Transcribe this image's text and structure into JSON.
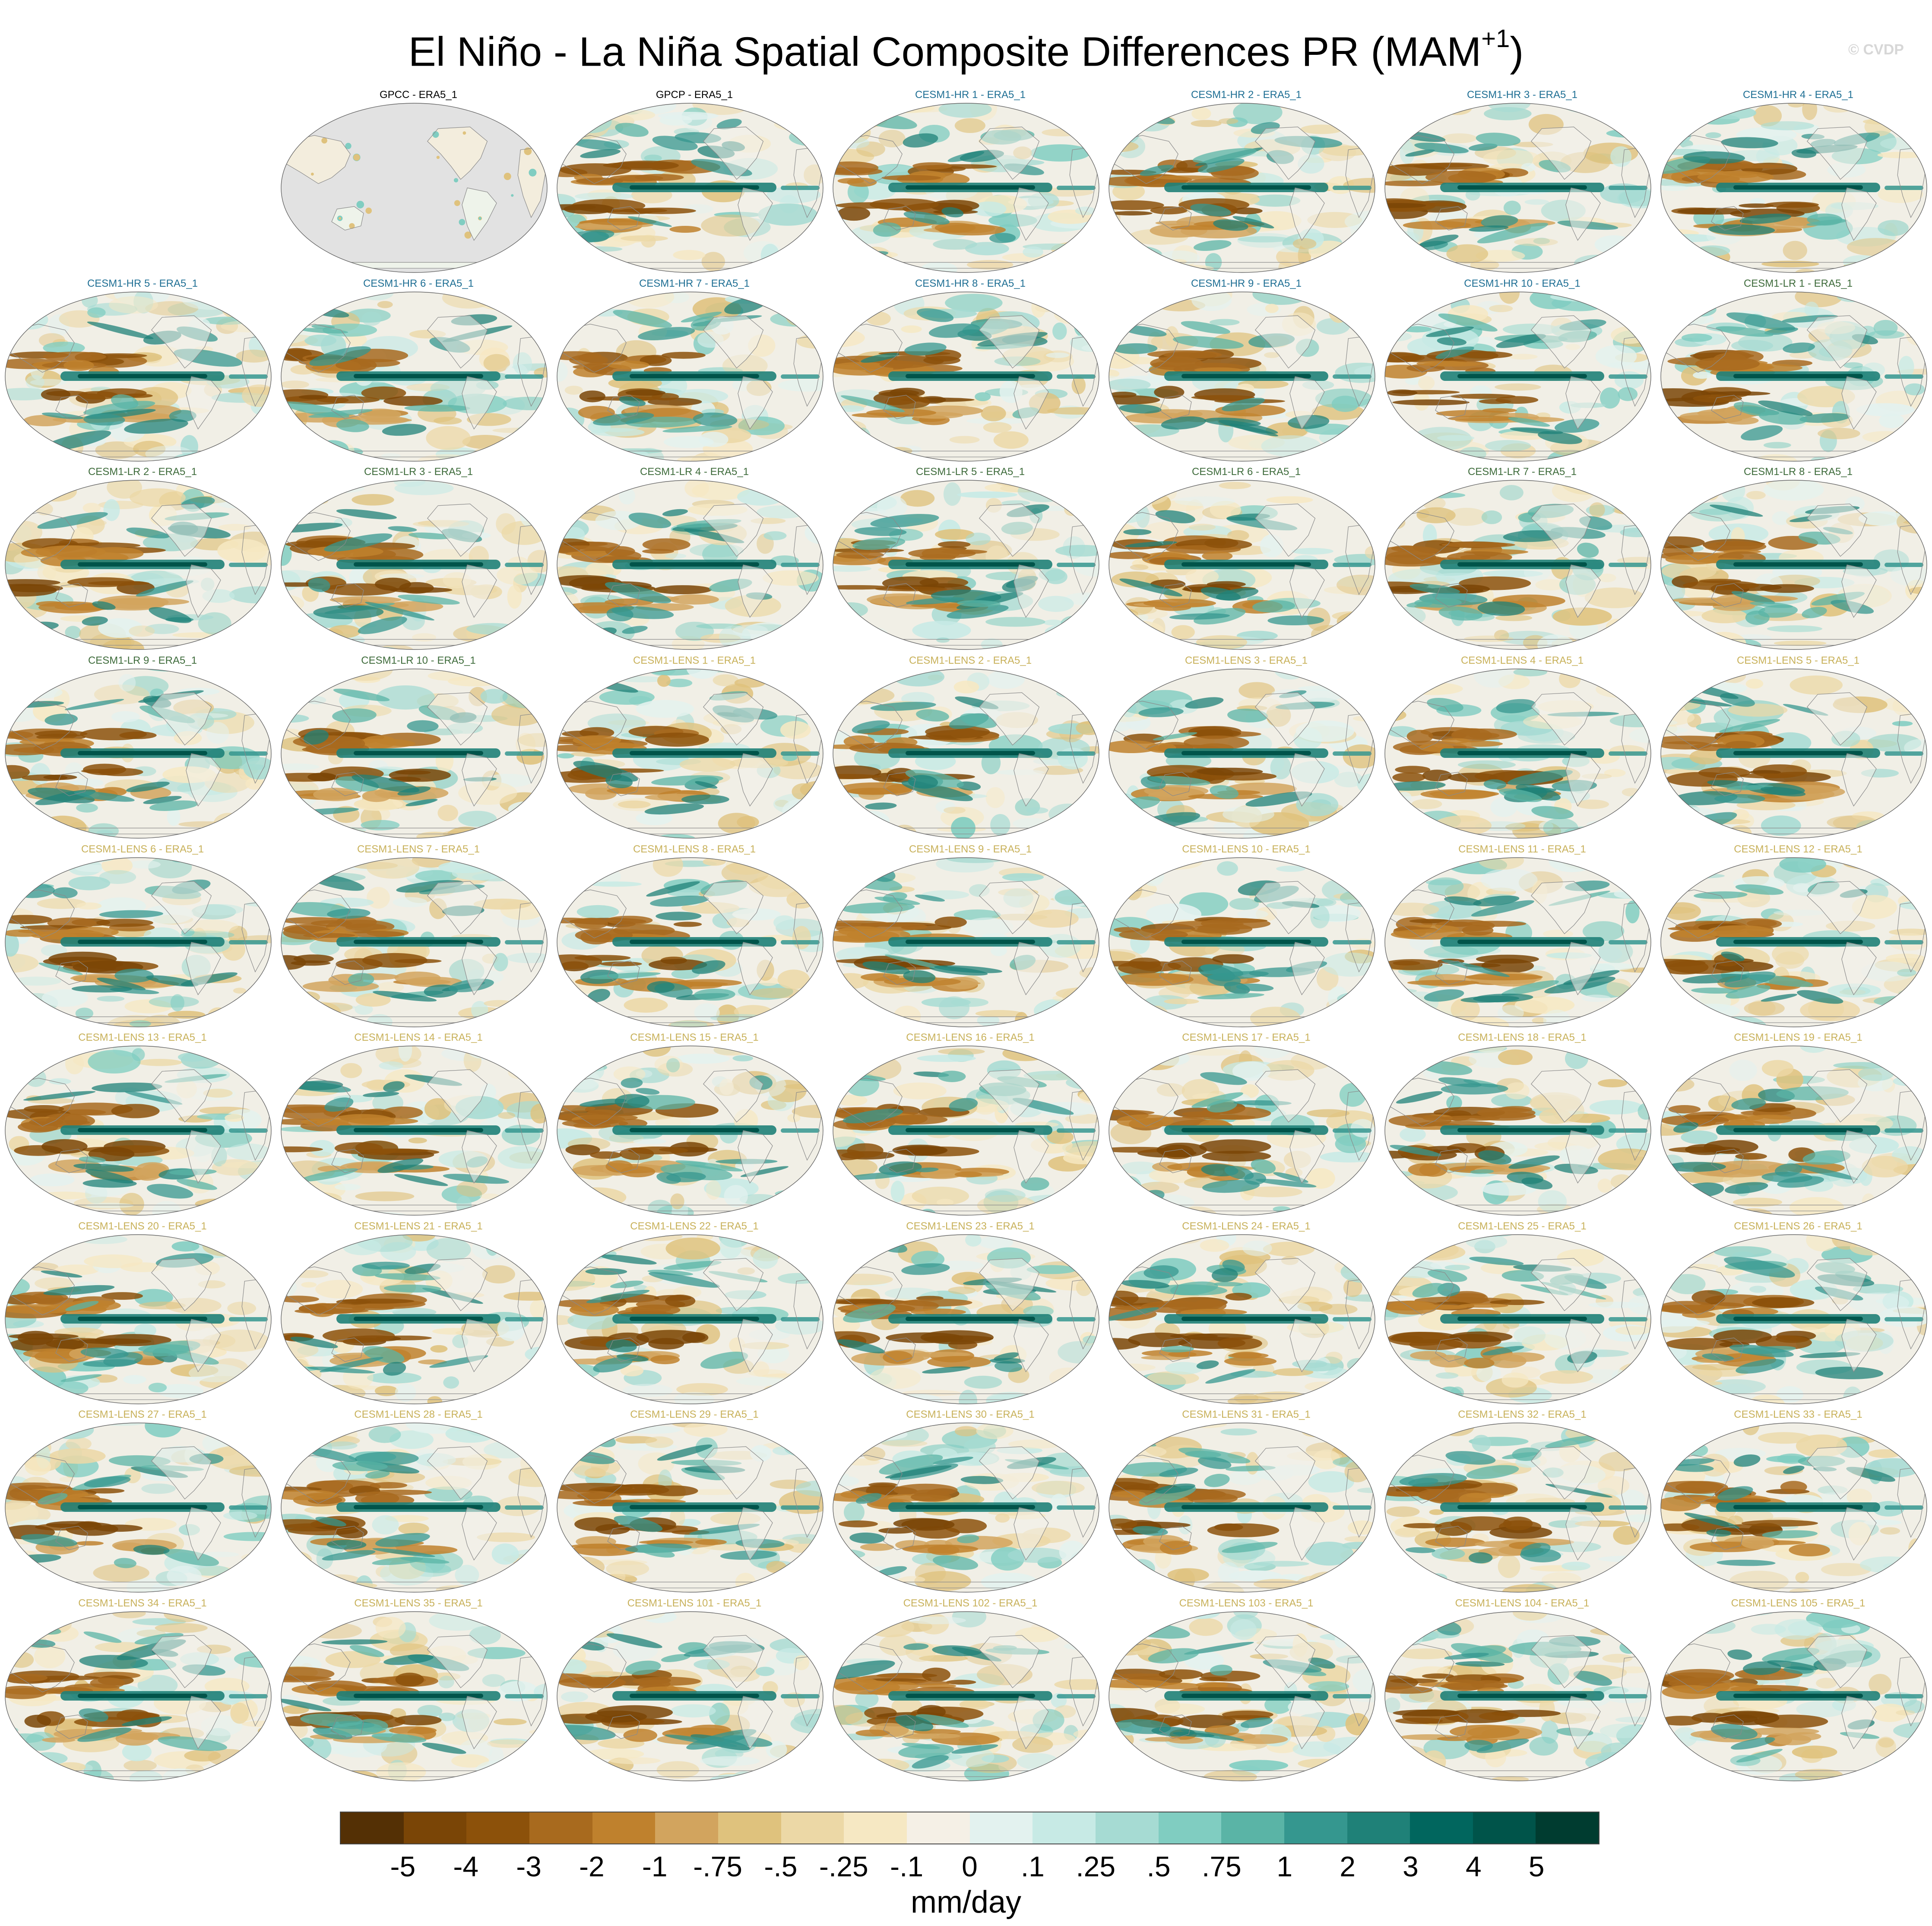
{
  "title": {
    "main": "El Niño - La Niña Spatial Composite Differences PR (MAM",
    "sup": "+1",
    "close": ")"
  },
  "watermark": "© CVDP",
  "colorbar": {
    "units": "mm/day",
    "ticks": [
      "-5",
      "-4",
      "-3",
      "-2",
      "-1",
      "-.75",
      "-.5",
      "-.25",
      "-.1",
      "0",
      ".1",
      ".25",
      ".5",
      ".75",
      "1",
      "2",
      "3",
      "4",
      "5"
    ],
    "colors": [
      "#543005",
      "#7a4506",
      "#8c510a",
      "#a86a1e",
      "#bf812d",
      "#d2a45e",
      "#dfc27d",
      "#ecd8a6",
      "#f6e8c3",
      "#f5f0e6",
      "#e3f2ef",
      "#c7eae5",
      "#a6dbd3",
      "#80cdc1",
      "#5ab4a6",
      "#35978f",
      "#1f8178",
      "#01665e",
      "#00544a",
      "#003c30"
    ]
  },
  "panel_groups": {
    "obs": {
      "color": "#000000"
    },
    "hr": {
      "color": "#1f6f94"
    },
    "lr": {
      "color": "#3e6b3b"
    },
    "lens": {
      "color": "#c8b15a"
    }
  },
  "panels": [
    {
      "row": 0,
      "col": 1,
      "label": "GPCC - ERA5_1",
      "group": "obs",
      "masked": true
    },
    {
      "row": 0,
      "col": 2,
      "label": "GPCP - ERA5_1",
      "group": "obs"
    },
    {
      "row": 0,
      "col": 3,
      "label": "CESM1-HR 1 - ERA5_1",
      "group": "hr"
    },
    {
      "row": 0,
      "col": 4,
      "label": "CESM1-HR 2 - ERA5_1",
      "group": "hr"
    },
    {
      "row": 0,
      "col": 5,
      "label": "CESM1-HR 3 - ERA5_1",
      "group": "hr"
    },
    {
      "row": 0,
      "col": 6,
      "label": "CESM1-HR 4 - ERA5_1",
      "group": "hr"
    },
    {
      "row": 1,
      "col": 0,
      "label": "CESM1-HR 5 - ERA5_1",
      "group": "hr"
    },
    {
      "row": 1,
      "col": 1,
      "label": "CESM1-HR 6 - ERA5_1",
      "group": "hr"
    },
    {
      "row": 1,
      "col": 2,
      "label": "CESM1-HR 7 - ERA5_1",
      "group": "hr"
    },
    {
      "row": 1,
      "col": 3,
      "label": "CESM1-HR 8 - ERA5_1",
      "group": "hr"
    },
    {
      "row": 1,
      "col": 4,
      "label": "CESM1-HR 9 - ERA5_1",
      "group": "hr"
    },
    {
      "row": 1,
      "col": 5,
      "label": "CESM1-HR 10 - ERA5_1",
      "group": "hr"
    },
    {
      "row": 1,
      "col": 6,
      "label": "CESM1-LR 1 - ERA5_1",
      "group": "lr"
    },
    {
      "row": 2,
      "col": 0,
      "label": "CESM1-LR 2 - ERA5_1",
      "group": "lr"
    },
    {
      "row": 2,
      "col": 1,
      "label": "CESM1-LR 3 - ERA5_1",
      "group": "lr"
    },
    {
      "row": 2,
      "col": 2,
      "label": "CESM1-LR 4 - ERA5_1",
      "group": "lr"
    },
    {
      "row": 2,
      "col": 3,
      "label": "CESM1-LR 5 - ERA5_1",
      "group": "lr"
    },
    {
      "row": 2,
      "col": 4,
      "label": "CESM1-LR 6 - ERA5_1",
      "group": "lr"
    },
    {
      "row": 2,
      "col": 5,
      "label": "CESM1-LR 7 - ERA5_1",
      "group": "lr"
    },
    {
      "row": 2,
      "col": 6,
      "label": "CESM1-LR 8 - ERA5_1",
      "group": "lr"
    },
    {
      "row": 3,
      "col": 0,
      "label": "CESM1-LR 9 - ERA5_1",
      "group": "lr"
    },
    {
      "row": 3,
      "col": 1,
      "label": "CESM1-LR 10 - ERA5_1",
      "group": "lr"
    },
    {
      "row": 3,
      "col": 2,
      "label": "CESM1-LENS 1 - ERA5_1",
      "group": "lens"
    },
    {
      "row": 3,
      "col": 3,
      "label": "CESM1-LENS 2 - ERA5_1",
      "group": "lens"
    },
    {
      "row": 3,
      "col": 4,
      "label": "CESM1-LENS 3 - ERA5_1",
      "group": "lens"
    },
    {
      "row": 3,
      "col": 5,
      "label": "CESM1-LENS 4 - ERA5_1",
      "group": "lens"
    },
    {
      "row": 3,
      "col": 6,
      "label": "CESM1-LENS 5 - ERA5_1",
      "group": "lens"
    },
    {
      "row": 4,
      "col": 0,
      "label": "CESM1-LENS 6 - ERA5_1",
      "group": "lens"
    },
    {
      "row": 4,
      "col": 1,
      "label": "CESM1-LENS 7 - ERA5_1",
      "group": "lens"
    },
    {
      "row": 4,
      "col": 2,
      "label": "CESM1-LENS 8 - ERA5_1",
      "group": "lens"
    },
    {
      "row": 4,
      "col": 3,
      "label": "CESM1-LENS 9 - ERA5_1",
      "group": "lens"
    },
    {
      "row": 4,
      "col": 4,
      "label": "CESM1-LENS 10 - ERA5_1",
      "group": "lens"
    },
    {
      "row": 4,
      "col": 5,
      "label": "CESM1-LENS 11 - ERA5_1",
      "group": "lens"
    },
    {
      "row": 4,
      "col": 6,
      "label": "CESM1-LENS 12 - ERA5_1",
      "group": "lens"
    },
    {
      "row": 5,
      "col": 0,
      "label": "CESM1-LENS 13 - ERA5_1",
      "group": "lens"
    },
    {
      "row": 5,
      "col": 1,
      "label": "CESM1-LENS 14 - ERA5_1",
      "group": "lens"
    },
    {
      "row": 5,
      "col": 2,
      "label": "CESM1-LENS 15 - ERA5_1",
      "group": "lens"
    },
    {
      "row": 5,
      "col": 3,
      "label": "CESM1-LENS 16 - ERA5_1",
      "group": "lens"
    },
    {
      "row": 5,
      "col": 4,
      "label": "CESM1-LENS 17 - ERA5_1",
      "group": "lens"
    },
    {
      "row": 5,
      "col": 5,
      "label": "CESM1-LENS 18 - ERA5_1",
      "group": "lens"
    },
    {
      "row": 5,
      "col": 6,
      "label": "CESM1-LENS 19 - ERA5_1",
      "group": "lens"
    },
    {
      "row": 6,
      "col": 0,
      "label": "CESM1-LENS 20 - ERA5_1",
      "group": "lens"
    },
    {
      "row": 6,
      "col": 1,
      "label": "CESM1-LENS 21 - ERA5_1",
      "group": "lens"
    },
    {
      "row": 6,
      "col": 2,
      "label": "CESM1-LENS 22 - ERA5_1",
      "group": "lens"
    },
    {
      "row": 6,
      "col": 3,
      "label": "CESM1-LENS 23 - ERA5_1",
      "group": "lens"
    },
    {
      "row": 6,
      "col": 4,
      "label": "CESM1-LENS 24 - ERA5_1",
      "group": "lens"
    },
    {
      "row": 6,
      "col": 5,
      "label": "CESM1-LENS 25 - ERA5_1",
      "group": "lens"
    },
    {
      "row": 6,
      "col": 6,
      "label": "CESM1-LENS 26 - ERA5_1",
      "group": "lens"
    },
    {
      "row": 7,
      "col": 0,
      "label": "CESM1-LENS 27 - ERA5_1",
      "group": "lens"
    },
    {
      "row": 7,
      "col": 1,
      "label": "CESM1-LENS 28 - ERA5_1",
      "group": "lens"
    },
    {
      "row": 7,
      "col": 2,
      "label": "CESM1-LENS 29 - ERA5_1",
      "group": "lens"
    },
    {
      "row": 7,
      "col": 3,
      "label": "CESM1-LENS 30 - ERA5_1",
      "group": "lens"
    },
    {
      "row": 7,
      "col": 4,
      "label": "CESM1-LENS 31 - ERA5_1",
      "group": "lens"
    },
    {
      "row": 7,
      "col": 5,
      "label": "CESM1-LENS 32 - ERA5_1",
      "group": "lens"
    },
    {
      "row": 7,
      "col": 6,
      "label": "CESM1-LENS 33 - ERA5_1",
      "group": "lens"
    },
    {
      "row": 8,
      "col": 0,
      "label": "CESM1-LENS 34 - ERA5_1",
      "group": "lens"
    },
    {
      "row": 8,
      "col": 1,
      "label": "CESM1-LENS 35 - ERA5_1",
      "group": "lens"
    },
    {
      "row": 8,
      "col": 2,
      "label": "CESM1-LENS 101 - ERA5_1",
      "group": "lens"
    },
    {
      "row": 8,
      "col": 3,
      "label": "CESM1-LENS 102 - ERA5_1",
      "group": "lens"
    },
    {
      "row": 8,
      "col": 4,
      "label": "CESM1-LENS 103 - ERA5_1",
      "group": "lens"
    },
    {
      "row": 8,
      "col": 5,
      "label": "CESM1-LENS 104 - ERA5_1",
      "group": "lens"
    },
    {
      "row": 8,
      "col": 6,
      "label": "CESM1-LENS 105 - ERA5_1",
      "group": "lens"
    }
  ]
}
